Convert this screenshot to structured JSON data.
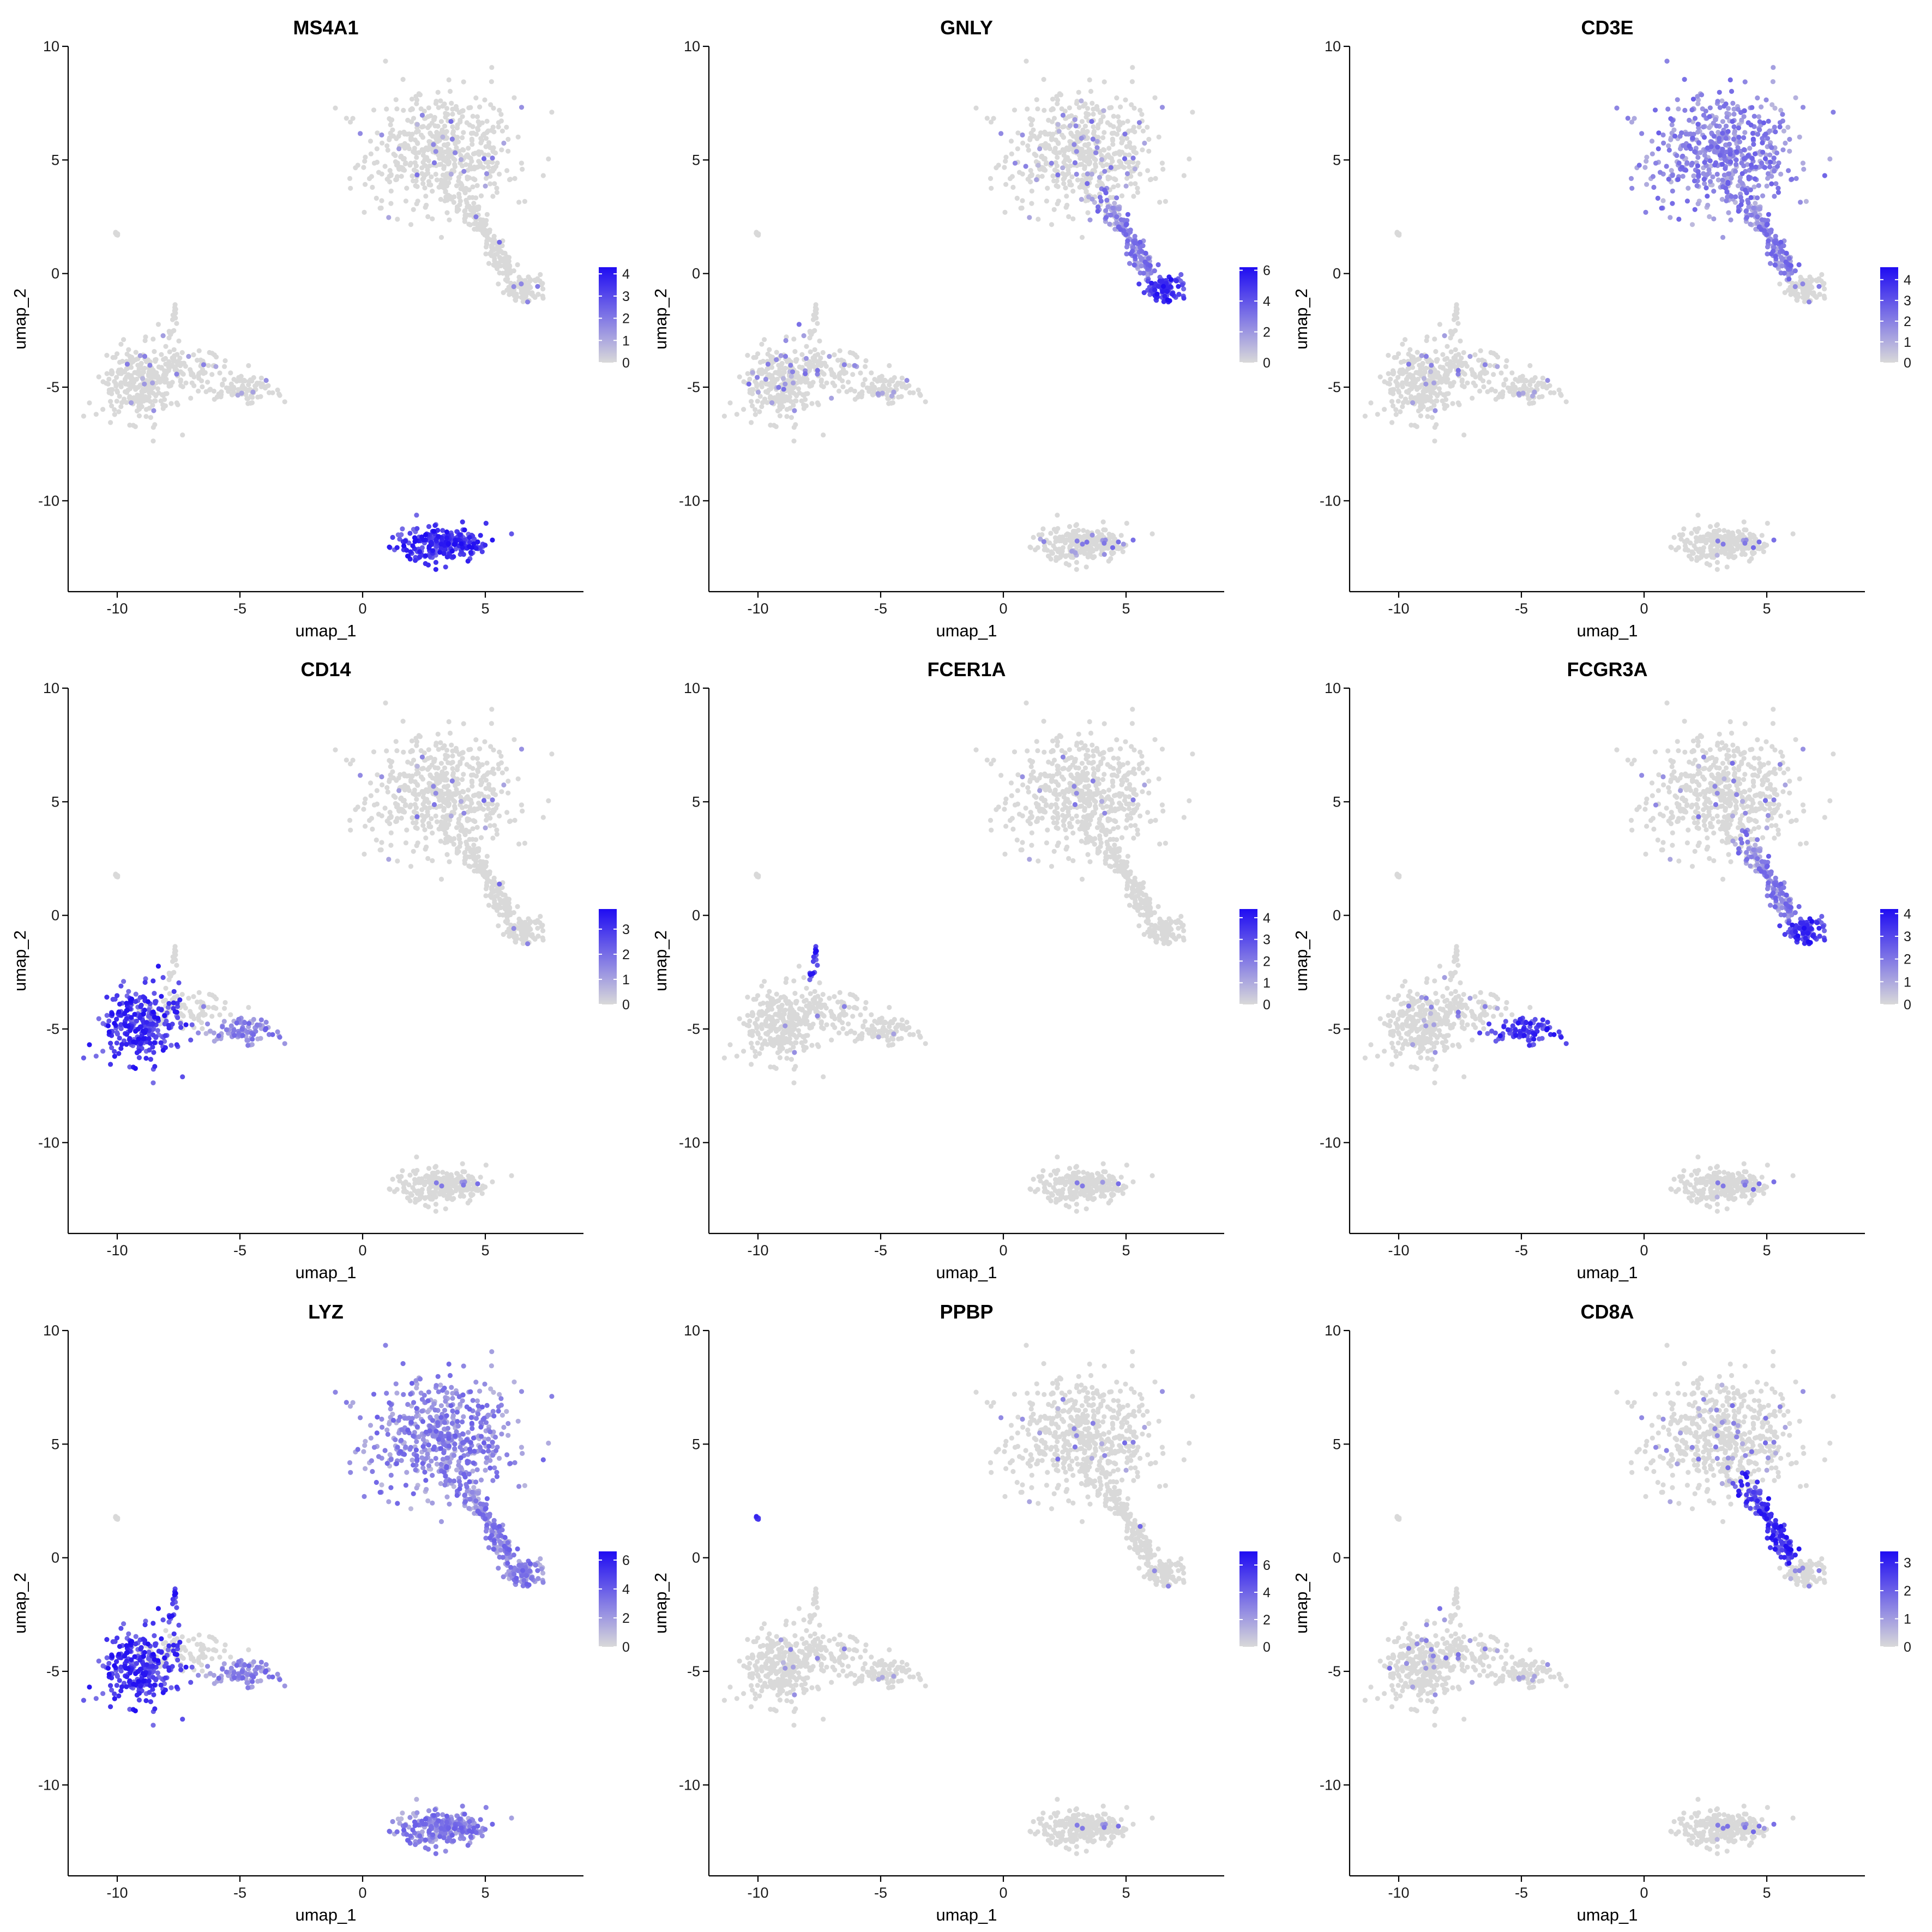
{
  "chart_data": [
    {
      "type": "scatter",
      "title": "MS4A1",
      "xlabel": "umap_1",
      "ylabel": "umap_2",
      "xlim": [
        -12,
        9
      ],
      "ylim": [
        -14,
        10
      ],
      "x_ticks": [
        -10,
        -5,
        0,
        5
      ],
      "y_ticks": [
        -10,
        -5,
        0,
        5,
        10
      ],
      "legend_ticks": [
        0,
        1,
        2,
        3,
        4
      ],
      "legend_max": 4.3,
      "legend_position": "right",
      "grid": false,
      "high_clusters": [
        "B"
      ],
      "mid_clusters": [],
      "background_rate": 0.03
    },
    {
      "type": "scatter",
      "title": "GNLY",
      "xlabel": "umap_1",
      "ylabel": "umap_2",
      "xlim": [
        -12,
        9
      ],
      "ylim": [
        -14,
        10
      ],
      "x_ticks": [
        -10,
        -5,
        0,
        5
      ],
      "y_ticks": [
        -10,
        -5,
        0,
        5,
        10
      ],
      "legend_ticks": [
        0,
        2,
        4,
        6
      ],
      "legend_max": 6.2,
      "legend_position": "right",
      "grid": false,
      "high_clusters": [
        "NK"
      ],
      "mid_clusters": [
        "T_tail"
      ],
      "background_rate": 0.08
    },
    {
      "type": "scatter",
      "title": "CD3E",
      "xlabel": "umap_1",
      "ylabel": "umap_2",
      "xlim": [
        -12,
        9
      ],
      "ylim": [
        -14,
        10
      ],
      "x_ticks": [
        -10,
        -5,
        0,
        5
      ],
      "y_ticks": [
        -10,
        -5,
        0,
        5,
        10
      ],
      "legend_ticks": [
        0,
        1,
        2,
        3,
        4
      ],
      "legend_max": 4.6,
      "legend_position": "right",
      "grid": false,
      "high_clusters": [],
      "mid_clusters": [
        "T",
        "T_tail"
      ],
      "background_rate": 0.04
    },
    {
      "type": "scatter",
      "title": "CD14",
      "xlabel": "umap_1",
      "ylabel": "umap_2",
      "xlim": [
        -12,
        9
      ],
      "ylim": [
        -14,
        10
      ],
      "x_ticks": [
        -10,
        -5,
        0,
        5
      ],
      "y_ticks": [
        -10,
        -5,
        0,
        5,
        10
      ],
      "legend_ticks": [
        0,
        1,
        2,
        3
      ],
      "legend_max": 3.8,
      "legend_position": "right",
      "grid": false,
      "high_clusters": [
        "Mono14"
      ],
      "mid_clusters": [
        "Mono16"
      ],
      "background_rate": 0.02
    },
    {
      "type": "scatter",
      "title": "FCER1A",
      "xlabel": "umap_1",
      "ylabel": "umap_2",
      "xlim": [
        -12,
        9
      ],
      "ylim": [
        -14,
        10
      ],
      "x_ticks": [
        -10,
        -5,
        0,
        5
      ],
      "y_ticks": [
        -10,
        -5,
        0,
        5,
        10
      ],
      "legend_ticks": [
        0,
        1,
        2,
        3,
        4
      ],
      "legend_max": 4.4,
      "legend_position": "right",
      "grid": false,
      "high_clusters": [
        "DC"
      ],
      "mid_clusters": [],
      "background_rate": 0.01
    },
    {
      "type": "scatter",
      "title": "FCGR3A",
      "xlabel": "umap_1",
      "ylabel": "umap_2",
      "xlim": [
        -12,
        9
      ],
      "ylim": [
        -14,
        10
      ],
      "x_ticks": [
        -10,
        -5,
        0,
        5
      ],
      "y_ticks": [
        -10,
        -5,
        0,
        5,
        10
      ],
      "legend_ticks": [
        0,
        1,
        2,
        3,
        4
      ],
      "legend_max": 4.2,
      "legend_position": "right",
      "grid": false,
      "high_clusters": [
        "Mono16",
        "NK"
      ],
      "mid_clusters": [
        "T_tail"
      ],
      "background_rate": 0.04
    },
    {
      "type": "scatter",
      "title": "LYZ",
      "xlabel": "umap_1",
      "ylabel": "umap_2",
      "xlim": [
        -12,
        9
      ],
      "ylim": [
        -14,
        10
      ],
      "x_ticks": [
        -10,
        -5,
        0,
        5
      ],
      "y_ticks": [
        -10,
        -5,
        0,
        5,
        10
      ],
      "legend_ticks": [
        0,
        2,
        4,
        6
      ],
      "legend_max": 6.6,
      "legend_position": "right",
      "grid": false,
      "high_clusters": [
        "Mono14",
        "DC"
      ],
      "mid_clusters": [
        "Mono16",
        "T",
        "T_tail",
        "NK",
        "B"
      ],
      "background_rate": 0.0
    },
    {
      "type": "scatter",
      "title": "PPBP",
      "xlabel": "umap_1",
      "ylabel": "umap_2",
      "xlim": [
        -12,
        9
      ],
      "ylim": [
        -14,
        10
      ],
      "x_ticks": [
        -10,
        -5,
        0,
        5
      ],
      "y_ticks": [
        -10,
        -5,
        0,
        5,
        10
      ],
      "legend_ticks": [
        0,
        2,
        4,
        6
      ],
      "legend_max": 7.0,
      "legend_position": "right",
      "grid": false,
      "high_clusters": [
        "Platelet"
      ],
      "mid_clusters": [],
      "background_rate": 0.02
    },
    {
      "type": "scatter",
      "title": "CD8A",
      "xlabel": "umap_1",
      "ylabel": "umap_2",
      "xlim": [
        -12,
        9
      ],
      "ylim": [
        -14,
        10
      ],
      "x_ticks": [
        -10,
        -5,
        0,
        5
      ],
      "y_ticks": [
        -10,
        -5,
        0,
        5,
        10
      ],
      "legend_ticks": [
        0,
        1,
        2,
        3
      ],
      "legend_max": 3.4,
      "legend_position": "right",
      "grid": false,
      "high_clusters": [
        "T_tail"
      ],
      "mid_clusters": [],
      "background_rate": 0.06
    }
  ],
  "clusters": {
    "T": {
      "center": [
        3.2,
        5.3
      ],
      "spread": [
        1.5,
        1.35
      ],
      "count": 540
    },
    "T_tail": {
      "path": [
        [
          4.0,
          3.5
        ],
        [
          4.8,
          2.2
        ],
        [
          5.5,
          0.9
        ],
        [
          6.0,
          0.0
        ]
      ],
      "spread": 0.35,
      "count": 170
    },
    "NK": {
      "center": [
        6.6,
        -0.6
      ],
      "spread": [
        0.45,
        0.28
      ],
      "count": 85
    },
    "Mono14": {
      "center": [
        -9.0,
        -4.8
      ],
      "spread": [
        0.8,
        0.8
      ],
      "count": 280
    },
    "Mono16": {
      "center": [
        -4.9,
        -5.1
      ],
      "spread": [
        0.6,
        0.3
      ],
      "count": 90
    },
    "Mono_bridge": {
      "center": [
        -7.0,
        -4.2
      ],
      "spread": [
        0.9,
        0.45
      ],
      "count": 90
    },
    "DC": {
      "path": [
        [
          -7.6,
          -1.2
        ],
        [
          -7.7,
          -2.0
        ],
        [
          -7.8,
          -2.8
        ]
      ],
      "spread": 0.1,
      "count": 18
    },
    "B": {
      "center": [
        3.3,
        -11.9
      ],
      "spread": [
        0.95,
        0.35
      ],
      "count": 240
    },
    "Platelet": {
      "center": [
        -10.0,
        1.75
      ],
      "spread": [
        0.06,
        0.05
      ],
      "count": 6
    }
  },
  "colors": {
    "low": "#d9d9d9",
    "high": "#1f0cf2"
  }
}
